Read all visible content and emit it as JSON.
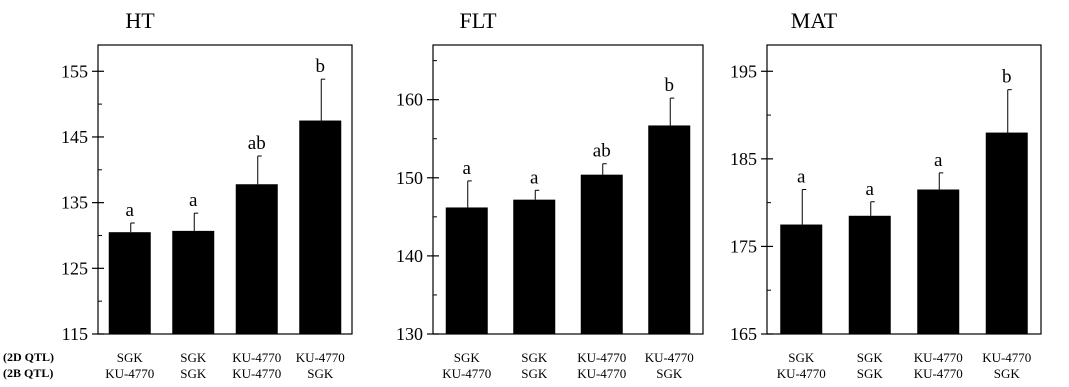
{
  "row_labels": [
    "(2D QTL)",
    "(2B QTL)"
  ],
  "chart_data": [
    {
      "type": "bar",
      "title": "HT",
      "categories": [
        [
          "SGK",
          "KU-4770"
        ],
        [
          "SGK",
          "SGK"
        ],
        [
          "KU-4770",
          "KU-4770"
        ],
        [
          "KU-4770",
          "SGK"
        ]
      ],
      "values": [
        130.5,
        130.7,
        137.8,
        147.5
      ],
      "errors": [
        1.4,
        2.7,
        4.3,
        6.3
      ],
      "letters": [
        "a",
        "a",
        "ab",
        "b"
      ],
      "ylim": [
        115,
        159
      ],
      "yticks": [
        115,
        125,
        135,
        145,
        155
      ],
      "minor_tick_step": 5,
      "grid": false
    },
    {
      "type": "bar",
      "title": "FLT",
      "categories": [
        [
          "SGK",
          "KU-4770"
        ],
        [
          "SGK",
          "SGK"
        ],
        [
          "KU-4770",
          "KU-4770"
        ],
        [
          "KU-4770",
          "SGK"
        ]
      ],
      "values": [
        146.2,
        147.2,
        150.4,
        156.7
      ],
      "errors": [
        3.4,
        1.2,
        1.4,
        3.5
      ],
      "letters": [
        "a",
        "a",
        "ab",
        "b"
      ],
      "ylim": [
        130,
        167
      ],
      "yticks": [
        130,
        140,
        150,
        160
      ],
      "minor_tick_step": 5,
      "grid": false
    },
    {
      "type": "bar",
      "title": "MAT",
      "categories": [
        [
          "SGK",
          "KU-4770"
        ],
        [
          "SGK",
          "SGK"
        ],
        [
          "KU-4770",
          "KU-4770"
        ],
        [
          "KU-4770",
          "SGK"
        ]
      ],
      "values": [
        177.5,
        178.5,
        181.5,
        188.0
      ],
      "errors": [
        4.0,
        1.6,
        1.9,
        4.9
      ],
      "letters": [
        "a",
        "a",
        "a",
        "b"
      ],
      "ylim": [
        165,
        198
      ],
      "yticks": [
        165,
        175,
        185,
        195
      ],
      "minor_tick_step": 5,
      "grid": false
    }
  ]
}
